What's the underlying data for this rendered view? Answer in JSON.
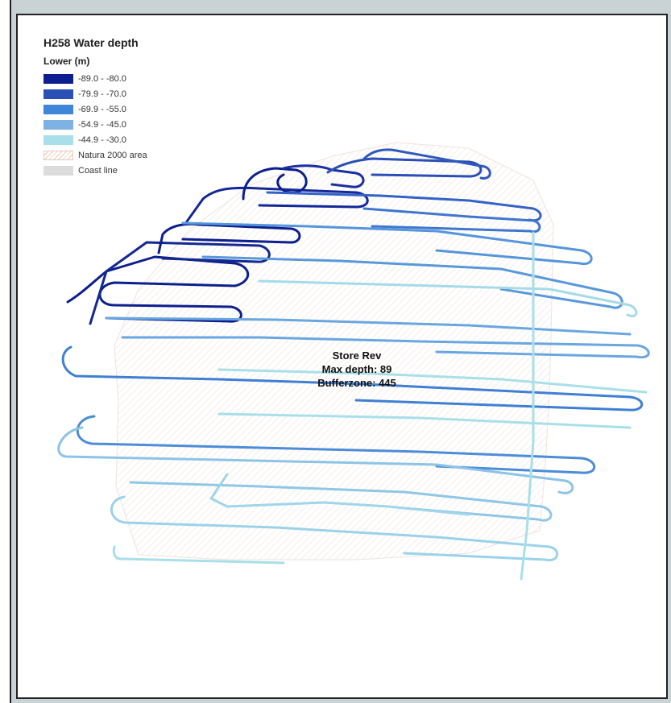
{
  "legend": {
    "title": "H258 Water depth",
    "subtitle": "Lower (m)",
    "items": [
      {
        "label": "-89.0 - -80.0",
        "color": "#0d1f8f"
      },
      {
        "label": "-79.9 - -70.0",
        "color": "#2a4fb6"
      },
      {
        "label": "-69.9 - -55.0",
        "color": "#3f86d8"
      },
      {
        "label": "-54.9 - -45.0",
        "color": "#7fb2e4"
      },
      {
        "label": "-44.9 - -30.0",
        "color": "#a9dfe9"
      },
      {
        "label": "Natura 2000 area",
        "color": "#efc8bd"
      },
      {
        "label": "Coast line",
        "color": "#dcdcdc"
      }
    ]
  },
  "site": {
    "name": "Store Rev",
    "max_depth": "Max depth: 89",
    "bufferzone": "Bufferzone: 445"
  }
}
